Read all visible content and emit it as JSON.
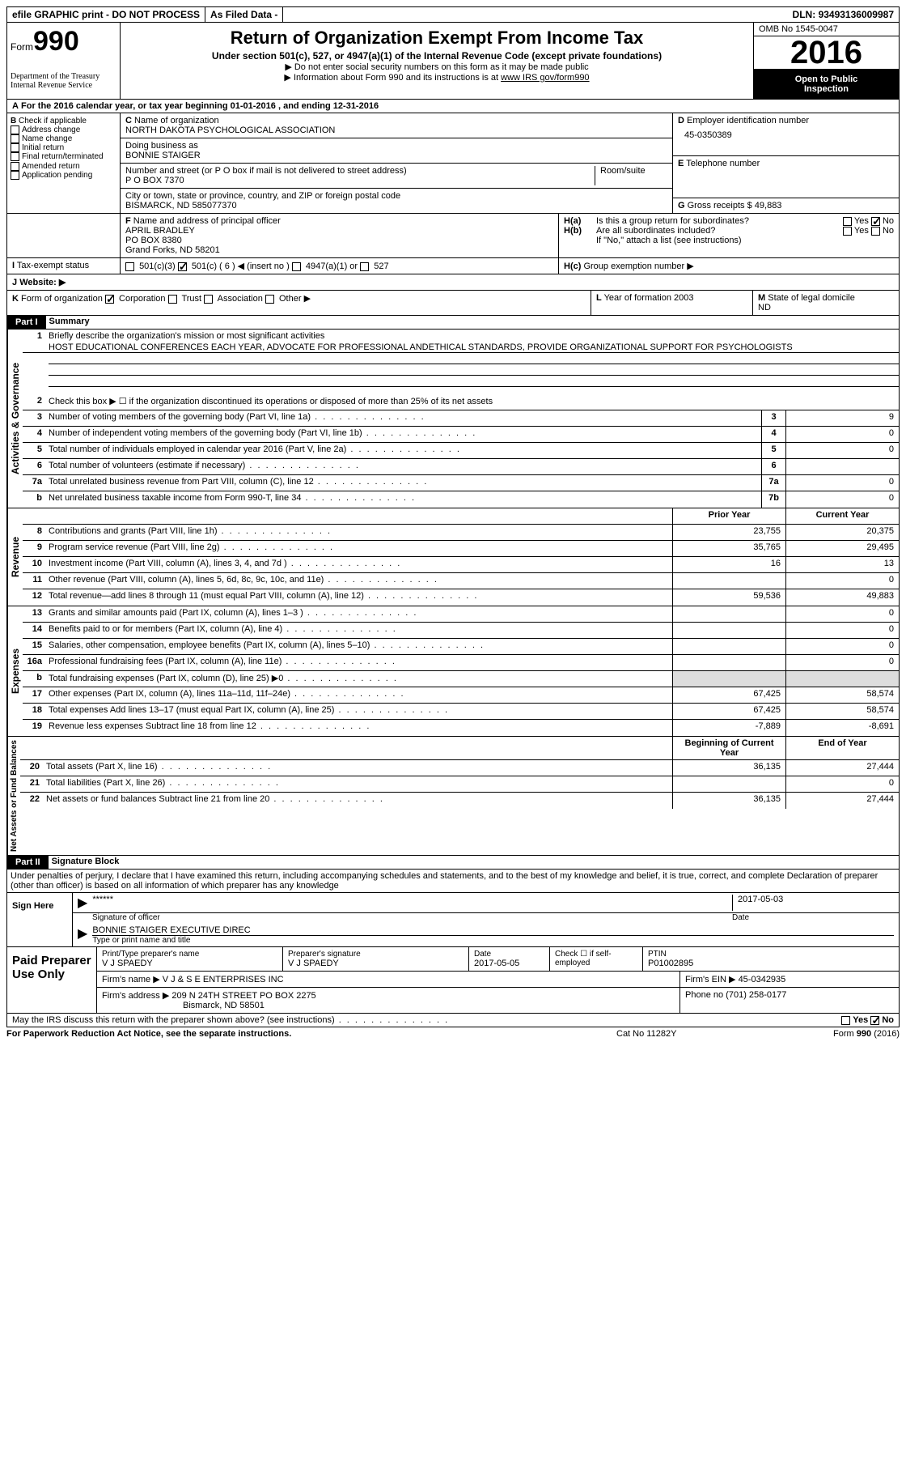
{
  "topbar": {
    "efile": "efile GRAPHIC print - DO NOT PROCESS",
    "asfiled": "As Filed Data -",
    "dln_label": "DLN:",
    "dln": "93493136009987"
  },
  "header": {
    "form_label": "Form",
    "form_number": "990",
    "dept1": "Department of the Treasury",
    "dept2": "Internal Revenue Service",
    "title": "Return of Organization Exempt From Income Tax",
    "subtitle": "Under section 501(c), 527, or 4947(a)(1) of the Internal Revenue Code (except private foundations)",
    "info1": "▶ Do not enter social security numbers on this form as it may be made public",
    "info2_pre": "▶ Information about Form 990 and its instructions is at ",
    "info2_link": "www IRS gov/form990",
    "omb_label": "OMB No",
    "omb": "1545-0047",
    "year": "2016",
    "inspection1": "Open to Public",
    "inspection2": "Inspection"
  },
  "sectionA": {
    "label": "A",
    "text_pre": "For the 2016 calendar year, or tax year beginning ",
    "date1": "01-01-2016",
    "text_mid": " , and ending ",
    "date2": "12-31-2016"
  },
  "sectionB": {
    "label": "B",
    "check_label": "Check if applicable",
    "items": [
      "Address change",
      "Name change",
      "Initial return",
      "Final return/terminated",
      "Amended return",
      "Application pending"
    ]
  },
  "sectionC": {
    "label": "C",
    "name_label": "Name of organization",
    "name": "NORTH DAKOTA PSYCHOLOGICAL ASSOCIATION",
    "dba_label": "Doing business as",
    "dba": "BONNIE STAIGER",
    "addr_label": "Number and street (or P O  box if mail is not delivered to street address)",
    "room_label": "Room/suite",
    "addr": "P O BOX 7370",
    "city_label": "City or town, state or province, country, and ZIP or foreign postal code",
    "city": "BISMARCK, ND  585077370"
  },
  "sectionD": {
    "label": "D",
    "ein_label": "Employer identification number",
    "ein": "45-0350389"
  },
  "sectionE": {
    "label": "E",
    "tel_label": "Telephone number"
  },
  "sectionF": {
    "label": "F",
    "officer_label": "Name and address of principal officer",
    "officer_name": "APRIL BRADLEY",
    "officer_addr1": "PO BOX 8380",
    "officer_addr2": "Grand Forks, ND  58201"
  },
  "sectionG": {
    "label": "G",
    "gross_label": "Gross receipts $",
    "gross": "49,883"
  },
  "sectionH": {
    "ha_label": "H(a)",
    "ha_text": "Is this a group return for subordinates?",
    "hb_label": "H(b)",
    "hb_text": "Are all subordinates included?",
    "hb_note": "If \"No,\" attach a list  (see instructions)",
    "hc_label": "H(c)",
    "hc_text": "Group exemption number ▶",
    "yes": "Yes",
    "no": "No"
  },
  "sectionI": {
    "label": "I",
    "text": "Tax-exempt status",
    "opt1": "501(c)(3)",
    "opt2": "501(c) ( 6 ) ◀ (insert no )",
    "opt3": "4947(a)(1) or",
    "opt4": "527"
  },
  "sectionJ": {
    "label": "J",
    "text": "Website: ▶"
  },
  "sectionK": {
    "label": "K",
    "text": "Form of organization",
    "opt1": "Corporation",
    "opt2": "Trust",
    "opt3": "Association",
    "opt4": "Other ▶"
  },
  "sectionL": {
    "label": "L",
    "text": "Year of formation",
    "val": "2003"
  },
  "sectionM": {
    "label": "M",
    "text": "State of legal domicile",
    "val": "ND"
  },
  "part1": {
    "label": "Part I",
    "title": "Summary",
    "line1_num": "1",
    "line1": "Briefly describe the organization's mission or most significant activities",
    "mission": "HOST EDUCATIONAL CONFERENCES EACH YEAR, ADVOCATE FOR PROFESSIONAL ANDETHICAL STANDARDS, PROVIDE ORGANIZATIONAL SUPPORT FOR PSYCHOLOGISTS",
    "line2_num": "2",
    "line2": "Check this box ▶ ☐ if the organization discontinued its operations or disposed of more than 25% of its net assets",
    "vertical1": "Activities & Governance",
    "vertical2": "Revenue",
    "vertical3": "Expenses",
    "vertical4": "Net Assets or Fund Balances",
    "prior_year": "Prior Year",
    "current_year": "Current Year",
    "begin_year": "Beginning of Current Year",
    "end_year": "End of Year",
    "lines_gov": [
      {
        "n": "3",
        "t": "Number of voting members of the governing body (Part VI, line 1a)",
        "box": "3",
        "v": "9"
      },
      {
        "n": "4",
        "t": "Number of independent voting members of the governing body (Part VI, line 1b)",
        "box": "4",
        "v": "0"
      },
      {
        "n": "5",
        "t": "Total number of individuals employed in calendar year 2016 (Part V, line 2a)",
        "box": "5",
        "v": "0"
      },
      {
        "n": "6",
        "t": "Total number of volunteers (estimate if necessary)",
        "box": "6",
        "v": ""
      },
      {
        "n": "7a",
        "t": "Total unrelated business revenue from Part VIII, column (C), line 12",
        "box": "7a",
        "v": "0"
      },
      {
        "n": "b",
        "t": "Net unrelated business taxable income from Form 990-T, line 34",
        "box": "7b",
        "v": "0"
      }
    ],
    "lines_rev": [
      {
        "n": "8",
        "t": "Contributions and grants (Part VIII, line 1h)",
        "p": "23,755",
        "c": "20,375"
      },
      {
        "n": "9",
        "t": "Program service revenue (Part VIII, line 2g)",
        "p": "35,765",
        "c": "29,495"
      },
      {
        "n": "10",
        "t": "Investment income (Part VIII, column (A), lines 3, 4, and 7d )",
        "p": "16",
        "c": "13"
      },
      {
        "n": "11",
        "t": "Other revenue (Part VIII, column (A), lines 5, 6d, 8c, 9c, 10c, and 11e)",
        "p": "",
        "c": "0"
      },
      {
        "n": "12",
        "t": "Total revenue—add lines 8 through 11 (must equal Part VIII, column (A), line 12)",
        "p": "59,536",
        "c": "49,883"
      }
    ],
    "lines_exp": [
      {
        "n": "13",
        "t": "Grants and similar amounts paid (Part IX, column (A), lines 1–3 )",
        "p": "",
        "c": "0"
      },
      {
        "n": "14",
        "t": "Benefits paid to or for members (Part IX, column (A), line 4)",
        "p": "",
        "c": "0"
      },
      {
        "n": "15",
        "t": "Salaries, other compensation, employee benefits (Part IX, column (A), lines 5–10)",
        "p": "",
        "c": "0"
      },
      {
        "n": "16a",
        "t": "Professional fundraising fees (Part IX, column (A), line 11e)",
        "p": "",
        "c": "0"
      },
      {
        "n": "b",
        "t": "Total fundraising expenses (Part IX, column (D), line 25) ▶0",
        "p": "shaded",
        "c": "shaded"
      },
      {
        "n": "17",
        "t": "Other expenses (Part IX, column (A), lines 11a–11d, 11f–24e)",
        "p": "67,425",
        "c": "58,574"
      },
      {
        "n": "18",
        "t": "Total expenses  Add lines 13–17 (must equal Part IX, column (A), line 25)",
        "p": "67,425",
        "c": "58,574"
      },
      {
        "n": "19",
        "t": "Revenue less expenses  Subtract line 18 from line 12",
        "p": "-7,889",
        "c": "-8,691"
      }
    ],
    "lines_net": [
      {
        "n": "20",
        "t": "Total assets (Part X, line 16)",
        "p": "36,135",
        "c": "27,444"
      },
      {
        "n": "21",
        "t": "Total liabilities (Part X, line 26)",
        "p": "",
        "c": "0"
      },
      {
        "n": "22",
        "t": "Net assets or fund balances  Subtract line 21 from line 20",
        "p": "36,135",
        "c": "27,444"
      }
    ]
  },
  "part2": {
    "label": "Part II",
    "title": "Signature Block",
    "perjury": "Under penalties of perjury, I declare that I have examined this return, including accompanying schedules and statements, and to the best of my knowledge and belief, it is true, correct, and complete  Declaration of preparer (other than officer) is based on all information of which preparer has any knowledge",
    "sign_here": "Sign Here",
    "sig_stars": "******",
    "sig_officer": "Signature of officer",
    "sig_date": "2017-05-03",
    "sig_date_label": "Date",
    "sig_name": "BONNIE STAIGER  EXECUTIVE DIREC",
    "sig_name_label": "Type or print name and title",
    "paid_prep": "Paid Preparer Use Only",
    "prep_name_label": "Print/Type preparer's name",
    "prep_name": "V J SPAEDY",
    "prep_sig_label": "Preparer's signature",
    "prep_sig": "V J SPAEDY",
    "prep_date_label": "Date",
    "prep_date": "2017-05-05",
    "prep_check": "Check ☐ if self-employed",
    "ptin_label": "PTIN",
    "ptin": "P01002895",
    "firm_name_label": "Firm's name    ▶",
    "firm_name": "V J & S E ENTERPRISES INC",
    "firm_ein_label": "Firm's EIN ▶",
    "firm_ein": "45-0342935",
    "firm_addr_label": "Firm's address ▶",
    "firm_addr1": "209 N 24TH STREET PO BOX 2275",
    "firm_addr2": "Bismarck, ND  58501",
    "phone_label": "Phone no",
    "phone": "(701) 258-0177",
    "discuss": "May the IRS discuss this return with the preparer shown above? (see instructions)"
  },
  "footer": {
    "paperwork": "For Paperwork Reduction Act Notice, see the separate instructions.",
    "cat": "Cat No  11282Y",
    "form": "Form 990 (2016)"
  }
}
